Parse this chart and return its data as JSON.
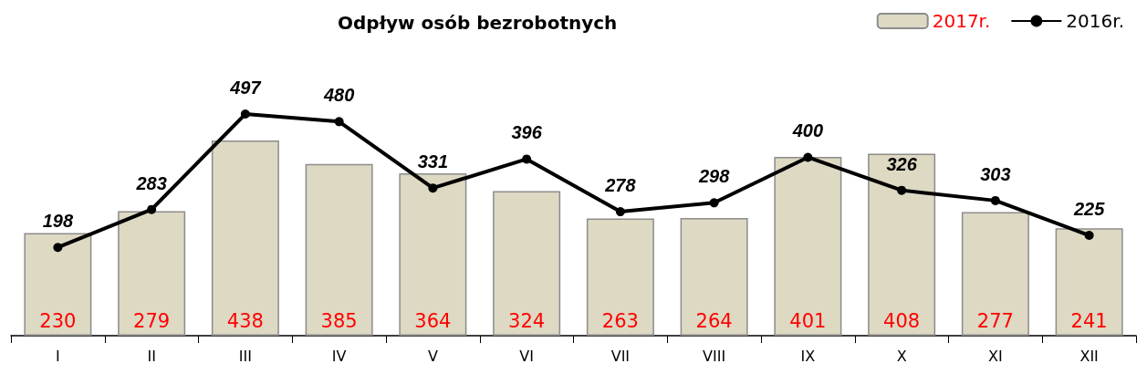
{
  "chart_data": {
    "type": "bar",
    "title": "Odpływ osób bezrobotnych",
    "categories": [
      "I",
      "II",
      "III",
      "IV",
      "V",
      "VI",
      "VII",
      "VIII",
      "IX",
      "X",
      "XI",
      "XII"
    ],
    "series": [
      {
        "name": "2017r.",
        "color": "#ddd9c3",
        "values": [
          230,
          279,
          438,
          385,
          364,
          324,
          263,
          264,
          401,
          408,
          277,
          241
        ]
      },
      {
        "name": "2016r.",
        "type": "line",
        "color": "#000000",
        "values": [
          198,
          283,
          497,
          480,
          331,
          396,
          278,
          298,
          400,
          326,
          303,
          225
        ]
      }
    ],
    "data_labels": true,
    "legend": "top right",
    "marker": "circle"
  }
}
